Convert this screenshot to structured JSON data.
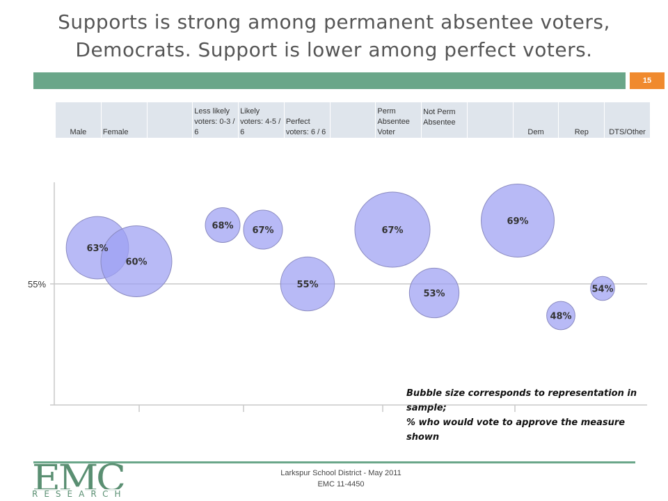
{
  "slide": {
    "title_line1": "Supports is strong among permanent absentee voters,",
    "title_line2": "Democrats.  Support is lower among perfect voters.",
    "page_number": "15",
    "accent_color": "#6aa689",
    "page_number_color": "#f08a2e"
  },
  "header_cells": [
    "Male",
    "Female",
    "",
    "Less likely voters: 0-3 / 6",
    "Likely voters: 4-5 / 6",
    "Perfect voters: 6 / 6",
    "",
    "Perm Absentee Voter",
    "Not Perm Absentee",
    "",
    "Dem",
    "Rep",
    "DTS/Other"
  ],
  "chart_data": {
    "type": "bubble",
    "reference_line": {
      "value": 55,
      "label": "55%"
    },
    "bubble_color": "#9d9ff2",
    "bubble_stroke": "#8a8ac0",
    "points": [
      {
        "group": "Male",
        "value": 63,
        "label": "63%",
        "size": 28
      },
      {
        "group": "Female",
        "value": 60,
        "label": "60%",
        "size": 32
      },
      {
        "group": "Less likely voters: 0-3 / 6",
        "value": 68,
        "label": "68%",
        "size": 15
      },
      {
        "group": "Likely voters: 4-5 / 6",
        "value": 67,
        "label": "67%",
        "size": 17
      },
      {
        "group": "Perfect voters: 6 / 6",
        "value": 55,
        "label": "55%",
        "size": 24
      },
      {
        "group": "Perm Absentee Voter",
        "value": 67,
        "label": "67%",
        "size": 34
      },
      {
        "group": "Not Perm Absentee",
        "value": 53,
        "label": "53%",
        "size": 22
      },
      {
        "group": "Dem",
        "value": 69,
        "label": "69%",
        "size": 33
      },
      {
        "group": "Rep",
        "value": 48,
        "label": "48%",
        "size": 12
      },
      {
        "group": "DTS/Other",
        "value": 54,
        "label": "54%",
        "size": 10
      }
    ],
    "note_line1": "Bubble size corresponds to representation in sample;",
    "note_line2_pre": "% who would vote to ",
    "note_line2_bold": "approve",
    "note_line2_post": " the measure shown"
  },
  "footer": {
    "line1": "Larkspur School District - May 2011",
    "line2": "EMC 11-4450",
    "logo_main": "EMC",
    "logo_sub": "RESEARCH"
  }
}
